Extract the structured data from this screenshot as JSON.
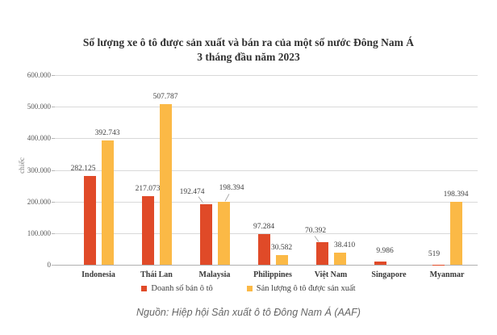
{
  "chart_data": {
    "type": "bar",
    "title_line1": "Số lượng xe ô tô được sản xuất và bán ra của một số nước Đông Nam Á",
    "title_line2": "3 tháng đầu năm 2023",
    "ylabel": "chiếc",
    "ylim": [
      0,
      600000
    ],
    "ytick_step": 100000,
    "yticks": [
      {
        "value": 600000,
        "label": "600.000"
      },
      {
        "value": 500000,
        "label": "500.000"
      },
      {
        "value": 400000,
        "label": "400.000"
      },
      {
        "value": 300000,
        "label": "300.000"
      },
      {
        "value": 200000,
        "label": "200.000"
      },
      {
        "value": 100000,
        "label": "100.000"
      },
      {
        "value": 0,
        "label": "0"
      }
    ],
    "grid": true,
    "legend_position": "bottom",
    "categories": [
      "Indonesia",
      "Thái Lan",
      "Malaysia",
      "Philippines",
      "Việt Nam",
      "Singapore",
      "Myanmar"
    ],
    "series": [
      {
        "name": "Doanh số bán ô tô",
        "color": "#e04a28",
        "values": [
          282125,
          217073,
          192474,
          97284,
          70392,
          9986,
          519
        ],
        "labels": [
          "282.125",
          "217.073",
          "192.474",
          "97.284",
          "70.392",
          "9.986",
          "519"
        ]
      },
      {
        "name": "Sản lượng ô tô được sản xuất",
        "color": "#fbb946",
        "values": [
          392743,
          507787,
          198394,
          30582,
          38410,
          null,
          198394
        ],
        "labels": [
          "392.743",
          "507.787",
          "198.394",
          "30.582",
          "38.410",
          "",
          "198.394"
        ]
      }
    ],
    "source": "Nguồn: Hiệp hội Sản xuất ô tô Đông Nam Á (AAF)"
  }
}
